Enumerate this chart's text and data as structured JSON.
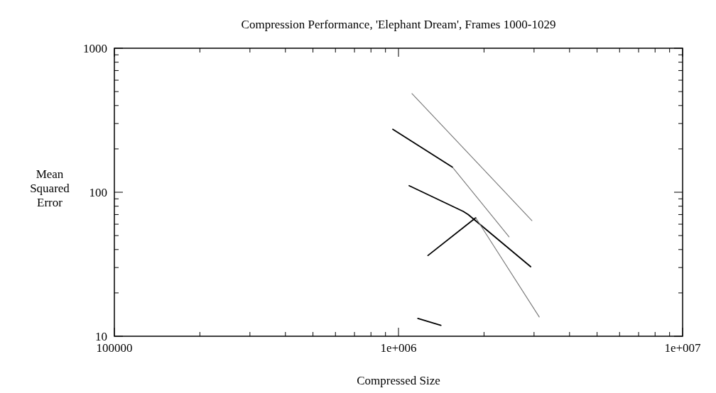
{
  "chart_data": {
    "type": "line",
    "title": "Compression Performance, 'Elephant Dream', Frames 1000-1029",
    "xlabel": "Compressed Size",
    "ylabel": "Mean Squared Error",
    "log": "xy",
    "grid": false,
    "line_style": "solid",
    "xlim": [
      100000,
      10000000
    ],
    "xticks": [
      {
        "value": 100000,
        "label": "100000"
      },
      {
        "value": 200000,
        "label": null
      },
      {
        "value": 300000,
        "label": null
      },
      {
        "value": 400000,
        "label": null
      },
      {
        "value": 500000,
        "label": null
      },
      {
        "value": 600000,
        "label": null
      },
      {
        "value": 700000,
        "label": null
      },
      {
        "value": 800000,
        "label": null
      },
      {
        "value": 900000,
        "label": null
      },
      {
        "value": 1000000,
        "label": "1e+006"
      },
      {
        "value": 2000000,
        "label": null
      },
      {
        "value": 3000000,
        "label": null
      },
      {
        "value": 4000000,
        "label": null
      },
      {
        "value": 5000000,
        "label": null
      },
      {
        "value": 6000000,
        "label": null
      },
      {
        "value": 7000000,
        "label": null
      },
      {
        "value": 8000000,
        "label": null
      },
      {
        "value": 9000000,
        "label": null
      },
      {
        "value": 10000000,
        "label": "1e+007"
      }
    ],
    "ylim": [
      10,
      1000
    ],
    "yticks": [
      10,
      {
        "value": 20,
        "label": null
      },
      {
        "value": 30,
        "label": null
      },
      {
        "value": 40,
        "label": null
      },
      {
        "value": 50,
        "label": null
      },
      {
        "value": 60,
        "label": null
      },
      {
        "value": 70,
        "label": null
      },
      {
        "value": 80,
        "label": null
      },
      {
        "value": 90,
        "label": null
      },
      100,
      {
        "value": 200,
        "label": null
      },
      {
        "value": 300,
        "label": null
      },
      {
        "value": 400,
        "label": null
      },
      {
        "value": 500,
        "label": null
      },
      {
        "value": 600,
        "label": null
      },
      {
        "value": 700,
        "label": null
      },
      {
        "value": 800,
        "label": null
      },
      {
        "value": 900,
        "label": null
      },
      1000
    ],
    "series": [
      {
        "color": "#777777",
        "x": [
          1115000,
          2950000
        ],
        "values": [
          484,
          63.5
        ]
      },
      {
        "color": "#000000",
        "x": [
          955000,
          1550000
        ],
        "values": [
          274,
          149
        ]
      },
      {
        "color": "#777777",
        "x": [
          1550000,
          2450000
        ],
        "values": [
          149,
          49
        ]
      },
      {
        "color": "#000000",
        "x": [
          1090000,
          1690000,
          1760000,
          2920000
        ],
        "values": [
          111,
          73.6,
          70,
          30.4
        ]
      },
      {
        "color": "#000000",
        "x": [
          1270000,
          1870000
        ],
        "values": [
          36.4,
          66.5
        ]
      },
      {
        "color": "#777777",
        "x": [
          1870000,
          3130000
        ],
        "values": [
          66.5,
          13.6
        ]
      },
      {
        "color": "#000000",
        "x": [
          1170000,
          1410000
        ],
        "values": [
          13.3,
          11.9
        ]
      }
    ]
  }
}
